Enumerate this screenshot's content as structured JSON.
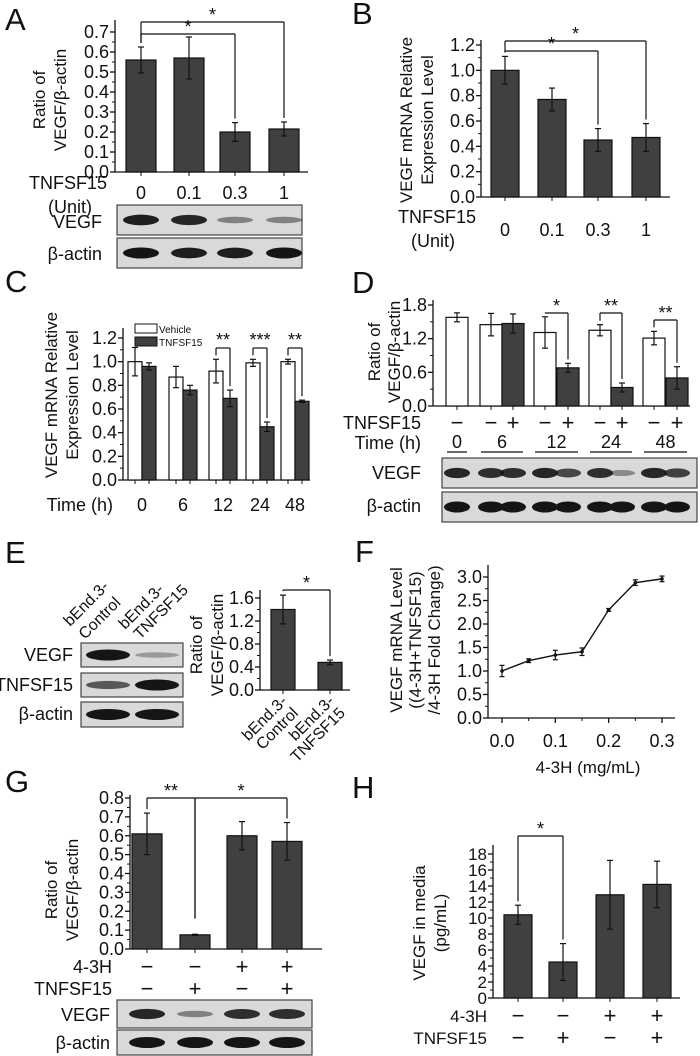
{
  "figure": {
    "panel_letters": [
      "A",
      "B",
      "C",
      "D",
      "E",
      "F",
      "G",
      "H"
    ]
  },
  "chart_data": [
    {
      "panel": "A",
      "type": "bar",
      "ylabel": [
        "Ratio of",
        "VEGF/β-actin"
      ],
      "ylim": [
        0,
        0.7
      ],
      "yticks": [
        "0.0",
        "0.1",
        "0.2",
        "0.3",
        "0.4",
        "0.5",
        "0.6",
        "0.7"
      ],
      "xrow_labels": [
        "TNFSF15",
        "(Unit)"
      ],
      "categories": [
        "0",
        "0.1",
        "0.3",
        "1"
      ],
      "values": [
        0.56,
        0.57,
        0.2,
        0.215
      ],
      "errors": [
        0.065,
        0.105,
        0.047,
        0.035
      ],
      "significance": [
        {
          "from": 0,
          "to": 2,
          "label": "*"
        },
        {
          "from": 0,
          "to": 3,
          "label": "*"
        }
      ],
      "blots": [
        {
          "label": "VEGF",
          "band_intensity": [
            0.95,
            0.9,
            0.35,
            0.35
          ]
        },
        {
          "label": "β-actin",
          "band_intensity": [
            1,
            0.95,
            0.95,
            1
          ]
        }
      ],
      "bar_color": "#404040"
    },
    {
      "panel": "B",
      "type": "bar",
      "ylabel": [
        "VEGF mRNA Relative",
        "Expression Level"
      ],
      "ylim": [
        0,
        1.2
      ],
      "yticks": [
        "0.0",
        "0.2",
        "0.4",
        "0.6",
        "0.8",
        "1.0",
        "1.2"
      ],
      "xrow_labels": [
        "TNFSF15",
        "(Unit)"
      ],
      "categories": [
        "0",
        "0.1",
        "0.3",
        "1"
      ],
      "values": [
        1.0,
        0.77,
        0.45,
        0.47
      ],
      "errors": [
        0.11,
        0.09,
        0.09,
        0.11
      ],
      "significance": [
        {
          "from": 0,
          "to": 2,
          "label": "*"
        },
        {
          "from": 0,
          "to": 3,
          "label": "*"
        }
      ],
      "bar_color": "#404040"
    },
    {
      "panel": "C",
      "type": "bar",
      "ylabel": [
        "VEGF mRNA Relative",
        "Expression Level"
      ],
      "ylim": [
        0,
        1.2
      ],
      "yticks": [
        "0.0",
        "0.2",
        "0.4",
        "0.6",
        "0.8",
        "1.0",
        "1.2"
      ],
      "xlabel": "Time (h)",
      "categories": [
        "0",
        "6",
        "12",
        "24",
        "48"
      ],
      "series": [
        {
          "name": "Vehicle",
          "values": [
            1.0,
            0.87,
            0.92,
            0.99,
            1.0
          ],
          "errors": [
            0.12,
            0.09,
            0.1,
            0.03,
            0.02
          ],
          "color": "#ffffff"
        },
        {
          "name": "TNFSF15",
          "values": [
            0.96,
            0.76,
            0.69,
            0.45,
            0.665
          ],
          "errors": [
            0.03,
            0.04,
            0.07,
            0.04,
            0.01
          ],
          "color": "#404040"
        }
      ],
      "legend": "top-left",
      "significance": [
        {
          "category": "12",
          "label": "**"
        },
        {
          "category": "24",
          "label": "***"
        },
        {
          "category": "48",
          "label": "**"
        }
      ]
    },
    {
      "panel": "D",
      "type": "bar",
      "ylabel": [
        "Ratio of",
        "VEGF/β-actin"
      ],
      "ylim": [
        0,
        1.8
      ],
      "yticks": [
        "0.0",
        "0.6",
        "1.2",
        "1.8"
      ],
      "row_labels": {
        "treatment": "TNFSF15",
        "time": "Time (h)"
      },
      "time_groups": [
        "0",
        "6",
        "12",
        "24",
        "48"
      ],
      "bars": [
        {
          "time": "0",
          "tnfsf15": "−",
          "value": 1.58,
          "error": 0.08
        },
        {
          "time": "6",
          "tnfsf15": "−",
          "value": 1.45,
          "error": 0.2
        },
        {
          "time": "6",
          "tnfsf15": "+",
          "value": 1.47,
          "error": 0.17
        },
        {
          "time": "12",
          "tnfsf15": "−",
          "value": 1.31,
          "error": 0.28
        },
        {
          "time": "12",
          "tnfsf15": "+",
          "value": 0.68,
          "error": 0.08
        },
        {
          "time": "24",
          "tnfsf15": "−",
          "value": 1.35,
          "error": 0.1
        },
        {
          "time": "24",
          "tnfsf15": "+",
          "value": 0.33,
          "error": 0.08
        },
        {
          "time": "48",
          "tnfsf15": "−",
          "value": 1.21,
          "error": 0.12
        },
        {
          "time": "48",
          "tnfsf15": "+",
          "value": 0.5,
          "error": 0.2
        }
      ],
      "significance": [
        {
          "from": 3,
          "to": 4,
          "label": "*"
        },
        {
          "from": 5,
          "to": 6,
          "label": "**"
        },
        {
          "from": 7,
          "to": 8,
          "label": "**"
        }
      ],
      "blots": [
        {
          "label": "VEGF",
          "band_intensity": [
            0.9,
            0.85,
            0.85,
            0.9,
            0.7,
            0.85,
            0.3,
            0.9,
            0.75
          ]
        },
        {
          "label": "β-actin",
          "band_intensity": [
            1,
            1,
            1,
            1,
            1,
            1,
            1,
            1,
            1
          ]
        }
      ],
      "colors": {
        "vehicle": "#ffffff",
        "tnfsf15": "#404040"
      }
    },
    {
      "panel": "E",
      "type": "bar",
      "ylabel": [
        "Ratio of",
        "VEGF/β-actin"
      ],
      "ylim": [
        0,
        1.6
      ],
      "yticks": [
        "0.0",
        "0.4",
        "0.8",
        "1.2",
        "1.6"
      ],
      "categories": [
        [
          "bEnd.3-",
          "Control"
        ],
        [
          "bEnd.3-",
          "TNFSF15"
        ]
      ],
      "values": [
        1.4,
        0.48
      ],
      "errors": [
        0.25,
        0.04
      ],
      "significance": [
        {
          "from": 0,
          "to": 1,
          "label": "*"
        }
      ],
      "blot_lanes": [
        [
          "bEnd.3-",
          "Control"
        ],
        [
          "bEnd.3-",
          "TNFSF15"
        ]
      ],
      "blots": [
        {
          "label": "VEGF",
          "band_intensity": [
            1,
            0.2
          ]
        },
        {
          "label": "TNFSF15",
          "band_intensity": [
            0.6,
            1
          ]
        },
        {
          "label": "β-actin",
          "band_intensity": [
            1,
            1
          ]
        }
      ],
      "bar_color": "#404040"
    },
    {
      "panel": "F",
      "type": "line",
      "ylabel": [
        "VEGF mRNA Level",
        "((4-3H+TNFSF15)",
        "/4-3H Fold Change)"
      ],
      "xlabel": "4-3H (mg/mL)",
      "ylim": [
        0,
        3.0
      ],
      "yticks": [
        "0.0",
        "0.5",
        "1.0",
        "1.5",
        "2.0",
        "2.5",
        "3.0"
      ],
      "xlim": [
        0,
        0.3
      ],
      "xticks": [
        "0.0",
        "0.1",
        "0.2",
        "0.3"
      ],
      "x": [
        0,
        0.05,
        0.1,
        0.15,
        0.2,
        0.25,
        0.3
      ],
      "y": [
        1.0,
        1.22,
        1.34,
        1.41,
        2.3,
        2.88,
        2.96
      ],
      "errors": [
        0.12,
        0.04,
        0.1,
        0.08,
        0.03,
        0.06,
        0.06
      ]
    },
    {
      "panel": "G",
      "type": "bar",
      "ylabel": [
        "Ratio of",
        "VEGF/β-actin"
      ],
      "ylim": [
        0,
        0.8
      ],
      "yticks": [
        "0.0",
        "0.1",
        "0.2",
        "0.3",
        "0.4",
        "0.5",
        "0.6",
        "0.7",
        "0.8"
      ],
      "rows": [
        {
          "label": "4-3H",
          "values": [
            "−",
            "−",
            "+",
            "+"
          ]
        },
        {
          "label": "TNFSF15",
          "values": [
            "−",
            "+",
            "−",
            "+"
          ]
        }
      ],
      "values": [
        0.61,
        0.075,
        0.6,
        0.57
      ],
      "errors": [
        0.11,
        0.003,
        0.075,
        0.1
      ],
      "significance": [
        {
          "from": 0,
          "to": 1,
          "label": "**"
        },
        {
          "from": 1,
          "to": 3,
          "label": "*"
        }
      ],
      "blots": [
        {
          "label": "VEGF",
          "band_intensity": [
            0.9,
            0.35,
            0.85,
            0.85
          ]
        },
        {
          "label": "β-actin",
          "band_intensity": [
            1,
            1,
            1,
            1
          ]
        }
      ],
      "bar_color": "#404040"
    },
    {
      "panel": "H",
      "type": "bar",
      "ylabel": [
        "VEGF in media",
        "(pg/mL)"
      ],
      "ylim": [
        0,
        18
      ],
      "yticks": [
        "0",
        "2",
        "4",
        "6",
        "8",
        "10",
        "12",
        "14",
        "16",
        "18"
      ],
      "rows": [
        {
          "label": "4-3H",
          "values": [
            "−",
            "−",
            "+",
            "+"
          ]
        },
        {
          "label": "TNFSF15",
          "values": [
            "−",
            "+",
            "−",
            "+"
          ]
        }
      ],
      "values": [
        10.4,
        4.5,
        12.9,
        14.2
      ],
      "errors": [
        1.2,
        2.3,
        4.3,
        2.9
      ],
      "significance": [
        {
          "from": 0,
          "to": 1,
          "label": "*"
        }
      ],
      "bar_color": "#404040"
    }
  ]
}
